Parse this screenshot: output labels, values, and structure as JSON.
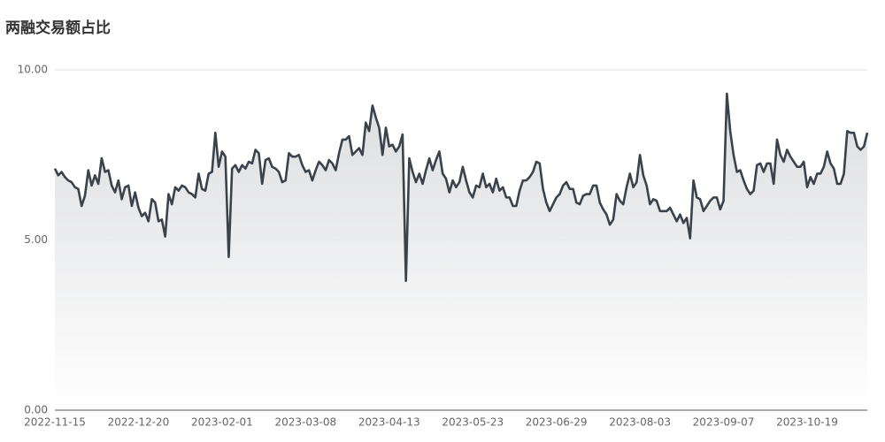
{
  "chart_data": {
    "type": "line",
    "title": "两融交易额占比",
    "categories": [
      "2022-11-15",
      null,
      null,
      null,
      null,
      null,
      null,
      null,
      null,
      null,
      null,
      null,
      null,
      null,
      null,
      null,
      null,
      null,
      null,
      null,
      null,
      null,
      null,
      null,
      null,
      "2022-12-20",
      null,
      null,
      null,
      null,
      null,
      null,
      null,
      null,
      null,
      null,
      null,
      null,
      null,
      null,
      null,
      null,
      null,
      null,
      null,
      null,
      null,
      null,
      null,
      null,
      "2023-02-01",
      null,
      null,
      null,
      null,
      null,
      null,
      null,
      null,
      null,
      null,
      null,
      null,
      null,
      null,
      null,
      null,
      null,
      null,
      null,
      null,
      null,
      null,
      null,
      null,
      "2023-03-08",
      null,
      null,
      null,
      null,
      null,
      null,
      null,
      null,
      null,
      null,
      null,
      null,
      null,
      null,
      null,
      null,
      null,
      null,
      null,
      null,
      null,
      null,
      null,
      null,
      "2023-04-13",
      null,
      null,
      null,
      null,
      null,
      null,
      null,
      null,
      null,
      null,
      null,
      null,
      null,
      null,
      null,
      null,
      null,
      null,
      null,
      null,
      null,
      null,
      null,
      null,
      "2023-05-23",
      null,
      null,
      null,
      null,
      null,
      null,
      null,
      null,
      null,
      null,
      null,
      null,
      null,
      null,
      null,
      null,
      null,
      null,
      null,
      null,
      null,
      null,
      null,
      null,
      "2023-06-29",
      null,
      null,
      null,
      null,
      null,
      null,
      null,
      null,
      null,
      null,
      null,
      null,
      null,
      null,
      null,
      null,
      null,
      null,
      null,
      null,
      null,
      null,
      null,
      null,
      "2023-08-03",
      null,
      null,
      null,
      null,
      null,
      null,
      null,
      null,
      null,
      null,
      null,
      null,
      null,
      null,
      null,
      null,
      null,
      null,
      null,
      null,
      null,
      null,
      null,
      null,
      "2023-09-07",
      null,
      null,
      null,
      null,
      null,
      null,
      null,
      null,
      null,
      null,
      null,
      null,
      null,
      null,
      null,
      null,
      null,
      null,
      null,
      null,
      null,
      null,
      null,
      null,
      "2023-10-19",
      null,
      null,
      null,
      null,
      null,
      null,
      null,
      null,
      null,
      null,
      null,
      null,
      null,
      null,
      null,
      null,
      null,
      null
    ],
    "values": [
      7.1,
      6.9,
      7.0,
      6.85,
      6.75,
      6.7,
      6.55,
      6.5,
      6.0,
      6.3,
      7.05,
      6.6,
      6.9,
      6.65,
      7.4,
      7.0,
      7.05,
      6.6,
      6.4,
      6.75,
      6.2,
      6.55,
      6.6,
      6.0,
      6.4,
      5.95,
      5.7,
      5.8,
      5.55,
      6.2,
      6.1,
      5.55,
      5.6,
      5.1,
      6.35,
      6.05,
      6.55,
      6.45,
      6.6,
      6.55,
      6.4,
      6.35,
      6.25,
      6.95,
      6.5,
      6.45,
      6.95,
      7.0,
      8.15,
      7.15,
      7.6,
      7.45,
      4.5,
      7.1,
      7.2,
      7.0,
      7.2,
      7.1,
      7.3,
      7.25,
      7.65,
      7.55,
      6.65,
      7.35,
      7.4,
      7.15,
      7.1,
      7.0,
      6.7,
      6.75,
      7.55,
      7.45,
      7.45,
      7.5,
      7.2,
      7.0,
      7.05,
      6.75,
      7.05,
      7.3,
      7.2,
      7.05,
      7.35,
      7.25,
      7.05,
      7.55,
      7.95,
      7.95,
      8.05,
      7.5,
      7.6,
      7.7,
      7.5,
      8.45,
      8.2,
      8.95,
      8.6,
      8.3,
      7.5,
      8.3,
      7.75,
      7.8,
      7.6,
      7.75,
      8.1,
      3.8,
      7.4,
      7.0,
      6.7,
      6.95,
      6.65,
      7.05,
      7.4,
      7.05,
      7.35,
      7.6,
      6.95,
      6.8,
      6.4,
      6.75,
      6.55,
      6.7,
      7.15,
      6.75,
      6.4,
      6.25,
      6.6,
      6.55,
      6.95,
      6.55,
      6.65,
      6.4,
      6.8,
      6.45,
      6.55,
      6.25,
      6.25,
      6.0,
      6.0,
      6.45,
      6.75,
      6.75,
      6.85,
      7.0,
      7.3,
      7.25,
      6.5,
      6.1,
      5.85,
      6.05,
      6.25,
      6.35,
      6.6,
      6.7,
      6.5,
      6.5,
      6.1,
      6.05,
      6.3,
      6.35,
      6.35,
      6.6,
      6.6,
      6.1,
      5.9,
      5.75,
      5.45,
      5.6,
      6.35,
      6.15,
      6.05,
      6.55,
      6.95,
      6.55,
      6.7,
      7.5,
      6.9,
      6.6,
      6.05,
      6.2,
      6.15,
      5.85,
      5.85,
      5.85,
      5.95,
      5.75,
      5.55,
      5.75,
      5.5,
      5.65,
      5.05,
      6.75,
      6.25,
      6.2,
      5.85,
      6.0,
      6.15,
      6.25,
      6.25,
      5.9,
      6.15,
      9.3,
      8.2,
      7.5,
      7.0,
      7.05,
      6.75,
      6.5,
      6.35,
      6.45,
      7.2,
      7.25,
      7.0,
      7.25,
      7.25,
      6.65,
      7.95,
      7.5,
      7.3,
      7.65,
      7.45,
      7.3,
      7.15,
      7.15,
      7.3,
      6.55,
      6.85,
      6.65,
      6.95,
      6.95,
      7.15,
      7.6,
      7.25,
      7.1,
      6.65,
      6.65,
      6.95,
      8.2,
      8.15,
      8.15,
      7.75,
      7.65,
      7.75,
      8.15
    ],
    "color": "#3b424a",
    "ylim": [
      0,
      10
    ],
    "yticks": [
      {
        "value": 0,
        "label": "0.00"
      },
      {
        "value": 5,
        "label": "5.00"
      },
      {
        "value": 10,
        "label": "10.00"
      }
    ],
    "grid": true
  }
}
